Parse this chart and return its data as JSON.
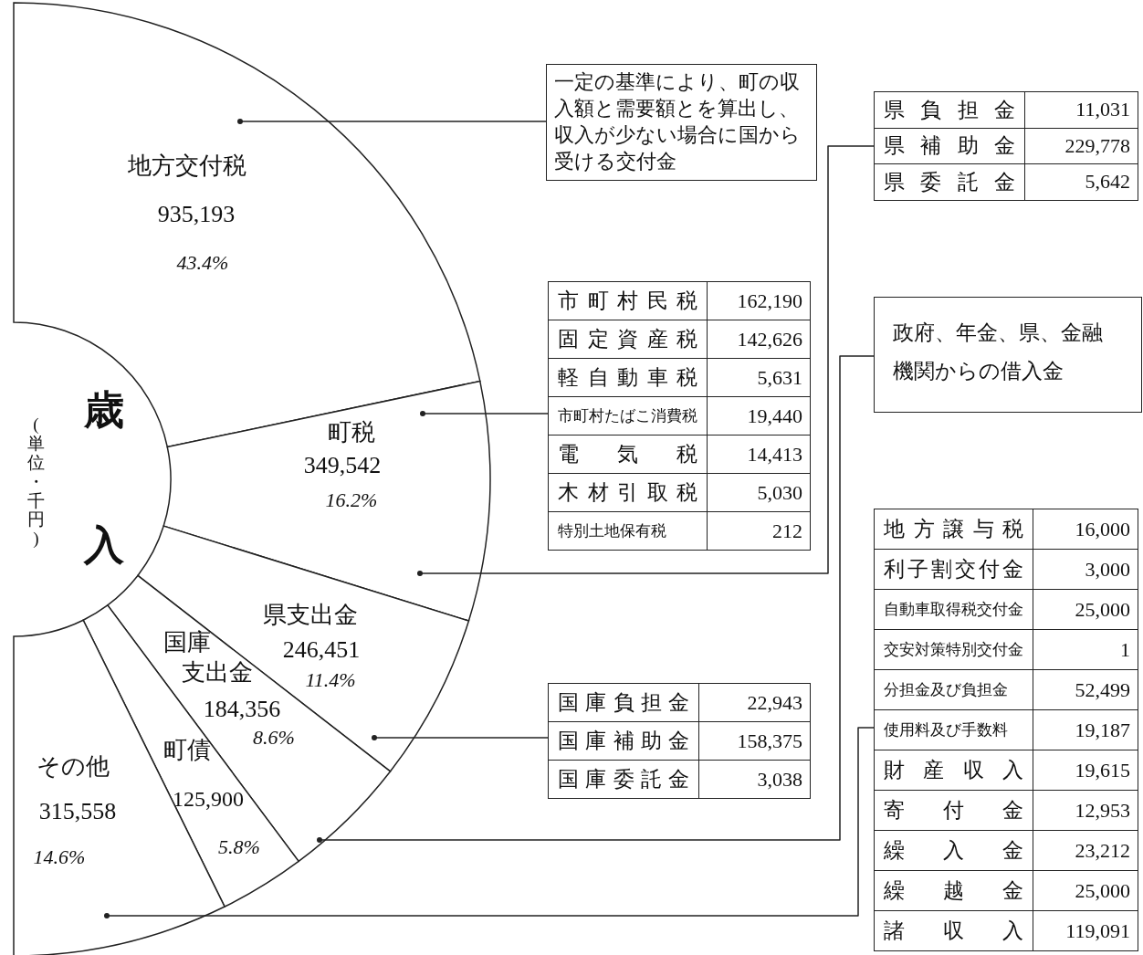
{
  "chart_data": {
    "type": "donut",
    "title": "歳入",
    "subtitle": "(単位・千円)",
    "categories": [
      "地方交付税",
      "町税",
      "県支出金",
      "国庫支出金",
      "町債",
      "その他"
    ],
    "values": [
      43.4,
      16.2,
      11.4,
      8.6,
      5.8,
      14.6
    ],
    "value_labels": [
      "43.4%",
      "16.2%",
      "11.4%",
      "8.6%",
      "5.8%",
      "14.6%"
    ],
    "colors": [
      "#ffffff",
      "#ffffff",
      "#ffffff",
      "#ffffff",
      "#ffffff",
      "#ffffff"
    ],
    "annotations": [
      "935,193",
      "349,542",
      "246,451",
      "184,356",
      "125,900",
      "315,558",
      "一定の基準により、町の収入額と需要額とを算出し、収入が少ない場合に国から受ける交付金",
      "県負担金",
      "11,031",
      "県補助金",
      "229,778",
      "県委託金",
      "5,642",
      "市町村民税",
      "162,190",
      "固定資産税",
      "142,626",
      "軽自動車税",
      "5,631",
      "市町村たばこ消費税",
      "19,440",
      "電気税",
      "14,413",
      "木材引取税",
      "5,030",
      "特別土地保有税",
      "212",
      "政府、年金、県、金融機関からの借入金",
      "国庫負担金",
      "22,943",
      "国庫補助金",
      "158,375",
      "国庫委託金",
      "3,038",
      "地方譲与税",
      "16,000",
      "利子割交付金",
      "3,000",
      "自動車取得税交付金",
      "25,000",
      "交安対策特別交付金",
      "1",
      "分担金及び負担金",
      "52,499",
      "使用料及び手数料",
      "19,187",
      "財産収入",
      "19,615",
      "寄付金",
      "12,953",
      "繰入金",
      "23,212",
      "繰越金",
      "25,000",
      "諸収入",
      "119,091"
    ]
  }
}
